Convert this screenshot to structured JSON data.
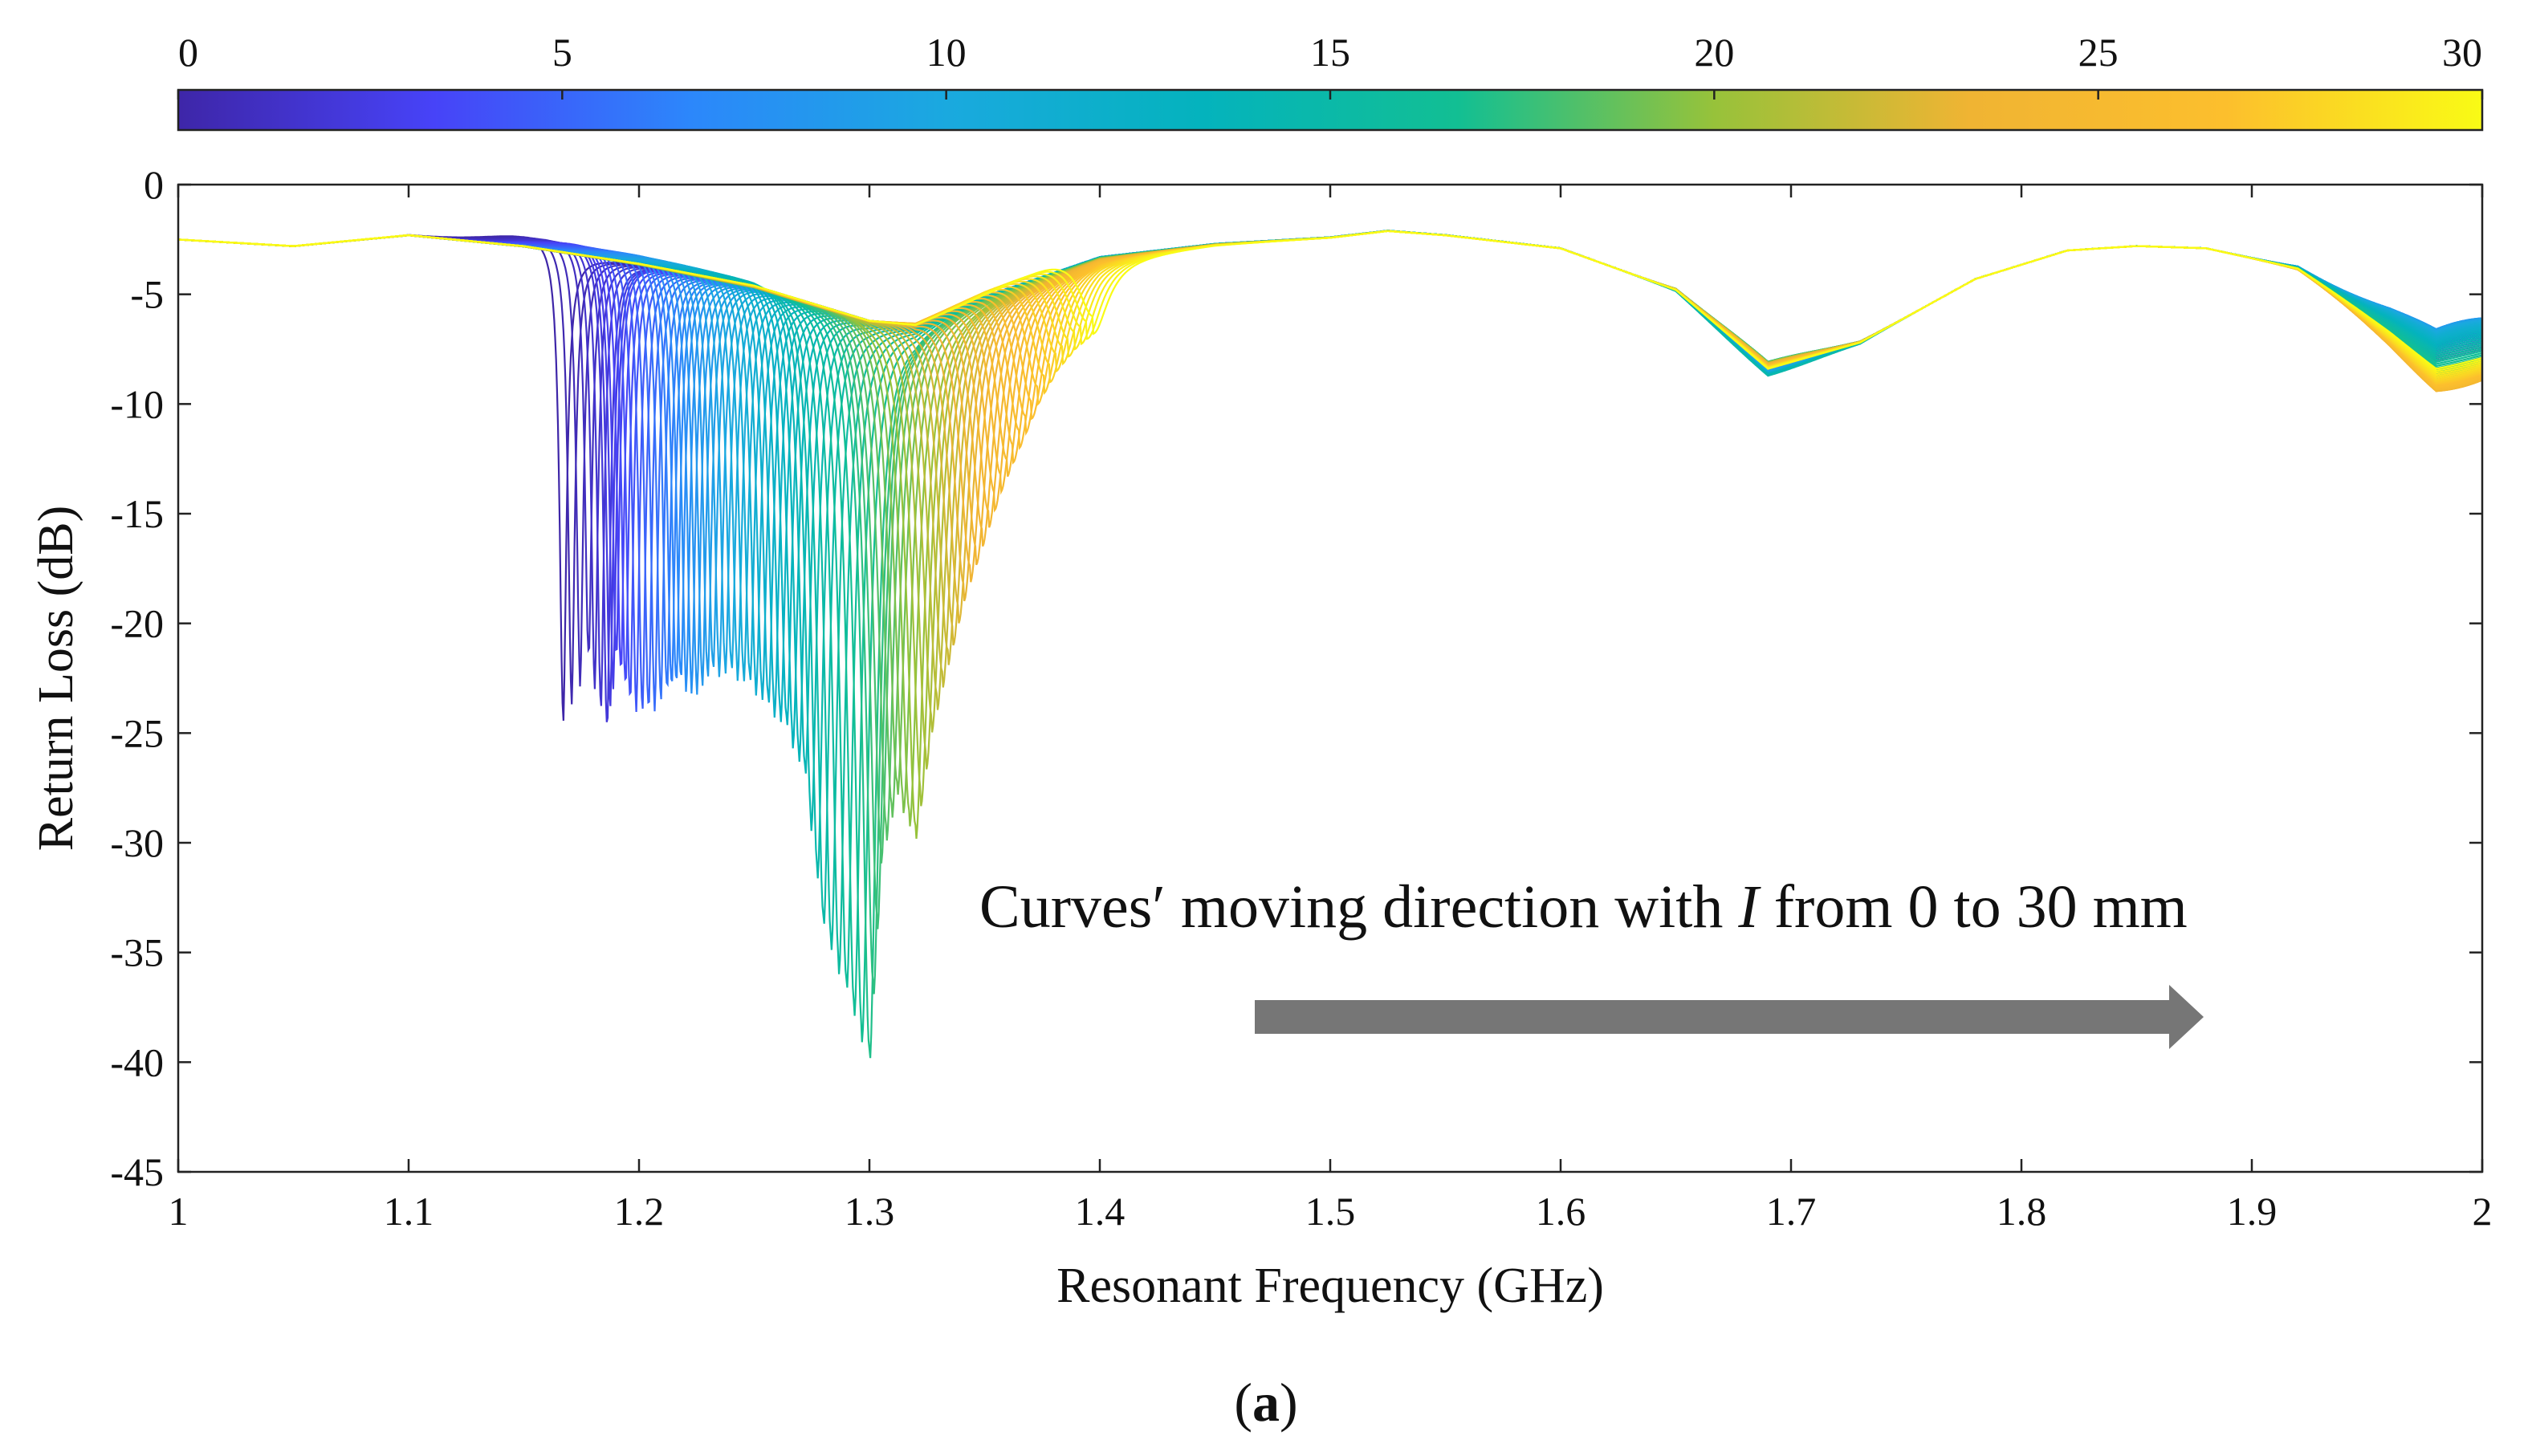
{
  "chart_data": {
    "type": "line",
    "title": "",
    "xlabel": "Resonant Frequency (GHz)",
    "ylabel": "Return Loss (dB)",
    "xlim": [
      1,
      2
    ],
    "ylim": [
      -45,
      0
    ],
    "x_ticks": [
      "1",
      "1.1",
      "1.2",
      "1.3",
      "1.4",
      "1.5",
      "1.6",
      "1.7",
      "1.8",
      "1.9",
      "2"
    ],
    "y_ticks": [
      "0",
      "-5",
      "-10",
      "-15",
      "-20",
      "-25",
      "-30",
      "-35",
      "-40",
      "-45"
    ],
    "colorbar": {
      "range": [
        0,
        30
      ],
      "ticks": [
        "0",
        "5",
        "10",
        "15",
        "20",
        "25",
        "30"
      ],
      "colors": [
        "#3e26a8",
        "#4743f8",
        "#2c87fb",
        "#1aa9df",
        "#04b3bd",
        "#12bf93",
        "#97c23a",
        "#f0b433",
        "#fcbf2d",
        "#f9fb15"
      ]
    },
    "parameter_values": [
      0,
      1,
      2,
      3,
      4,
      5,
      6,
      7,
      8,
      9,
      10,
      11,
      12,
      13,
      14,
      15,
      16,
      17,
      18,
      19,
      20,
      21,
      22,
      23,
      24,
      25,
      26,
      27,
      28,
      29,
      30
    ],
    "resonance_series": {
      "parameter": [
        0,
        1,
        2,
        3,
        4,
        5,
        6,
        7,
        8,
        9,
        10,
        11,
        12,
        13,
        14,
        15,
        16,
        17,
        18,
        19,
        20,
        21,
        22,
        23,
        24,
        25,
        26,
        27,
        28,
        29,
        30
      ],
      "frequency_GHz": [
        1.167,
        1.178,
        1.186,
        1.19,
        1.196,
        1.204,
        1.212,
        1.218,
        1.225,
        1.232,
        1.24,
        1.248,
        1.256,
        1.264,
        1.272,
        1.28,
        1.29,
        1.3,
        1.305,
        1.312,
        1.32,
        1.327,
        1.334,
        1.341,
        1.349,
        1.357,
        1.365,
        1.373,
        1.381,
        1.389,
        1.397
      ],
      "return_loss_dB": [
        -24.7,
        -22.0,
        -25.3,
        -22.0,
        -24.0,
        -24.4,
        -23.5,
        -23.0,
        -23.4,
        -22.5,
        -22.5,
        -23.0,
        -24.0,
        -25.0,
        -27.2,
        -34.1,
        -37.0,
        -40.2,
        -31.0,
        -28.0,
        -30.0,
        -25.0,
        -22.0,
        -19.0,
        -16.5,
        -14.0,
        -12.0,
        -10.0,
        -8.5,
        -7.5,
        -6.8
      ]
    },
    "baseline_series": {
      "frequency_GHz": [
        1.0,
        1.05,
        1.1,
        1.15,
        1.2,
        1.25,
        1.3,
        1.32,
        1.35,
        1.4,
        1.45,
        1.5,
        1.525,
        1.55,
        1.6,
        1.65,
        1.69,
        1.73,
        1.78,
        1.82,
        1.85,
        1.88,
        1.92,
        1.96,
        1.98,
        2.0
      ],
      "return_loss_dB": [
        -2.5,
        -2.8,
        -2.3,
        -2.8,
        -3.6,
        -4.6,
        -6.2,
        -6.4,
        -5.1,
        -3.3,
        -2.7,
        -2.4,
        -2.1,
        -2.3,
        -2.9,
        -4.8,
        -8.4,
        -7.2,
        -4.3,
        -3.0,
        -2.8,
        -2.9,
        -3.8,
        -6.5,
        -8.0,
        -7.5
      ]
    },
    "annotation": {
      "text_before": "Curves′ moving direction with ",
      "italic_symbol": "I",
      "text_after": " from 0 to 30 mm",
      "arrow_color": "#767676"
    }
  },
  "caption": {
    "open": "(",
    "letter": "a",
    "close": ")"
  }
}
